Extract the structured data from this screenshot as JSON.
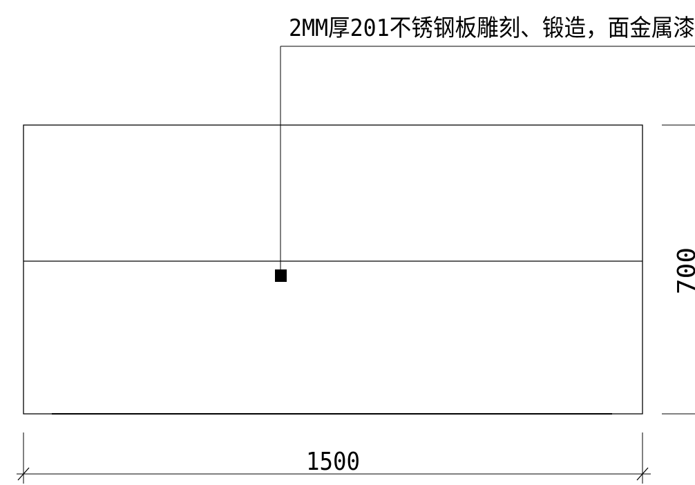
{
  "annotation": {
    "text": "2MM厚201不锈钢板雕刻、锻造，面金属漆"
  },
  "dimensions": {
    "width_label": "1500",
    "height_label": "700"
  },
  "colors": {
    "line": "#000000",
    "background": "#ffffff"
  }
}
